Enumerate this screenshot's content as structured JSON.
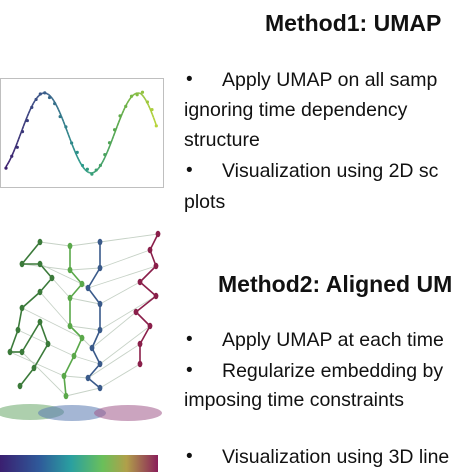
{
  "method1": {
    "title": "Method1: UMAP",
    "bullets": [
      {
        "lines": [
          "Apply UMAP on all    samp",
          "ignoring time dependency",
          "structure"
        ]
      },
      {
        "lines": [
          "Visualization using 2D    sc",
          "plots"
        ]
      }
    ]
  },
  "method2": {
    "title": "Method2: Aligned UM",
    "bullets": [
      {
        "lines": [
          "Apply UMAP at each time"
        ]
      },
      {
        "lines": [
          "Regularize embedding by",
          "imposing time constraints"
        ]
      },
      {
        "lines": [
          "Visualization using 3D line"
        ]
      }
    ]
  },
  "bullet_symbol": "•",
  "colors": {
    "purple": "#3b1f6e",
    "blue": "#3a5a8a",
    "teal": "#2a9a8a",
    "green": "#5aa84a",
    "yellowgreen": "#b8d43a",
    "crimson": "#8a1f4a",
    "frame": "#bfbfbf"
  }
}
